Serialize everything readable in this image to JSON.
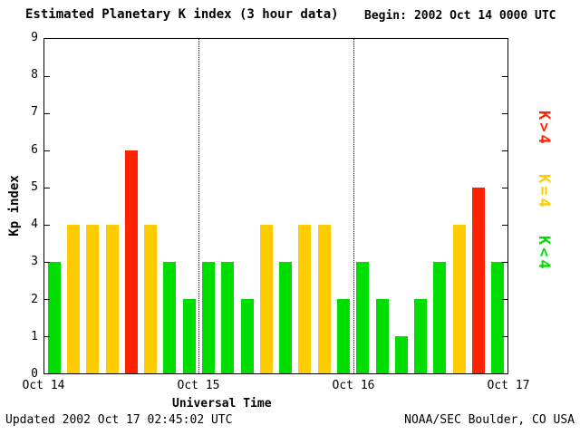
{
  "title": "Estimated Planetary K index (3 hour data)",
  "begin": {
    "label": "Begin:",
    "value": "2002 Oct 14 0000 UTC"
  },
  "footer": {
    "updated": "Updated 2002 Oct 17 02:45:02 UTC",
    "source": "NOAA/SEC Boulder, CO USA"
  },
  "legend": [
    {
      "label": "K>4",
      "color": "#ff2200"
    },
    {
      "label": "K=4",
      "color": "#ffcc00"
    },
    {
      "label": "K<4",
      "color": "#00dd00"
    }
  ],
  "chart_data": {
    "type": "bar",
    "title": "Estimated Planetary K index (3 hour data)",
    "xlabel": "Universal Time",
    "ylabel": "Kp index",
    "ylim": [
      0,
      9
    ],
    "y_ticks": [
      0,
      1,
      2,
      3,
      4,
      5,
      6,
      7,
      8,
      9
    ],
    "x_tick_labels": [
      "Oct 14",
      "Oct 15",
      "Oct 16",
      "Oct 17"
    ],
    "bars_per_day": 8,
    "values": [
      3,
      4,
      4,
      4,
      6,
      4,
      3,
      2,
      3,
      3,
      2,
      4,
      3,
      4,
      4,
      2,
      3,
      2,
      1,
      2,
      3,
      4,
      5,
      3
    ],
    "color_rule": "green if K<4, yellow if K=4, red if K>4",
    "bar_colors": {
      "low": "#00dd00",
      "mid": "#ffcc00",
      "high": "#ff2200"
    },
    "grid": "dotted vertical line at each day boundary",
    "legend_position": "right, rotated"
  }
}
